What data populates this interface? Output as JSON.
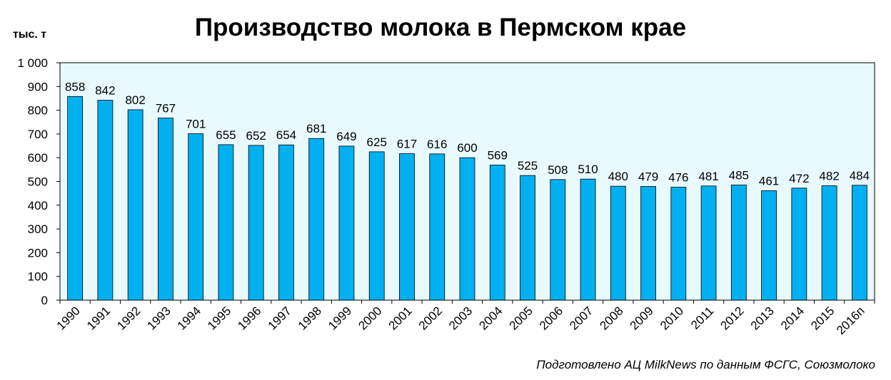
{
  "chart_data": {
    "type": "bar",
    "title": "Производство молока в Пермском крае",
    "ylabel": "тыс. т",
    "xlabel": "",
    "source": "Подготовлено АЦ MilkNews по данным ФСГС, Союзмолоко",
    "ylim": [
      0,
      1000
    ],
    "yticks": [
      0,
      100,
      200,
      300,
      400,
      500,
      600,
      700,
      800,
      900,
      1000
    ],
    "ytick_labels": [
      "0",
      "100",
      "200",
      "300",
      "400",
      "500",
      "600",
      "700",
      "800",
      "900",
      "1 000"
    ],
    "categories": [
      "1990",
      "1991",
      "1992",
      "1993",
      "1994",
      "1995",
      "1996",
      "1997",
      "1998",
      "1999",
      "2000",
      "2001",
      "2002",
      "2003",
      "2004",
      "2005",
      "2006",
      "2007",
      "2008",
      "2009",
      "2010",
      "2011",
      "2012",
      "2013",
      "2014",
      "2015",
      "2016п"
    ],
    "values": [
      858,
      842,
      802,
      767,
      701,
      655,
      652,
      654,
      681,
      649,
      625,
      617,
      616,
      600,
      569,
      525,
      508,
      510,
      480,
      479,
      476,
      481,
      485,
      461,
      472,
      482,
      484
    ],
    "grid": false,
    "legend": "none",
    "colors": {
      "bar": "#00b0f0",
      "bar_stroke": "#000000",
      "plot_background": "#e9fafe",
      "axis": "#000000"
    }
  }
}
